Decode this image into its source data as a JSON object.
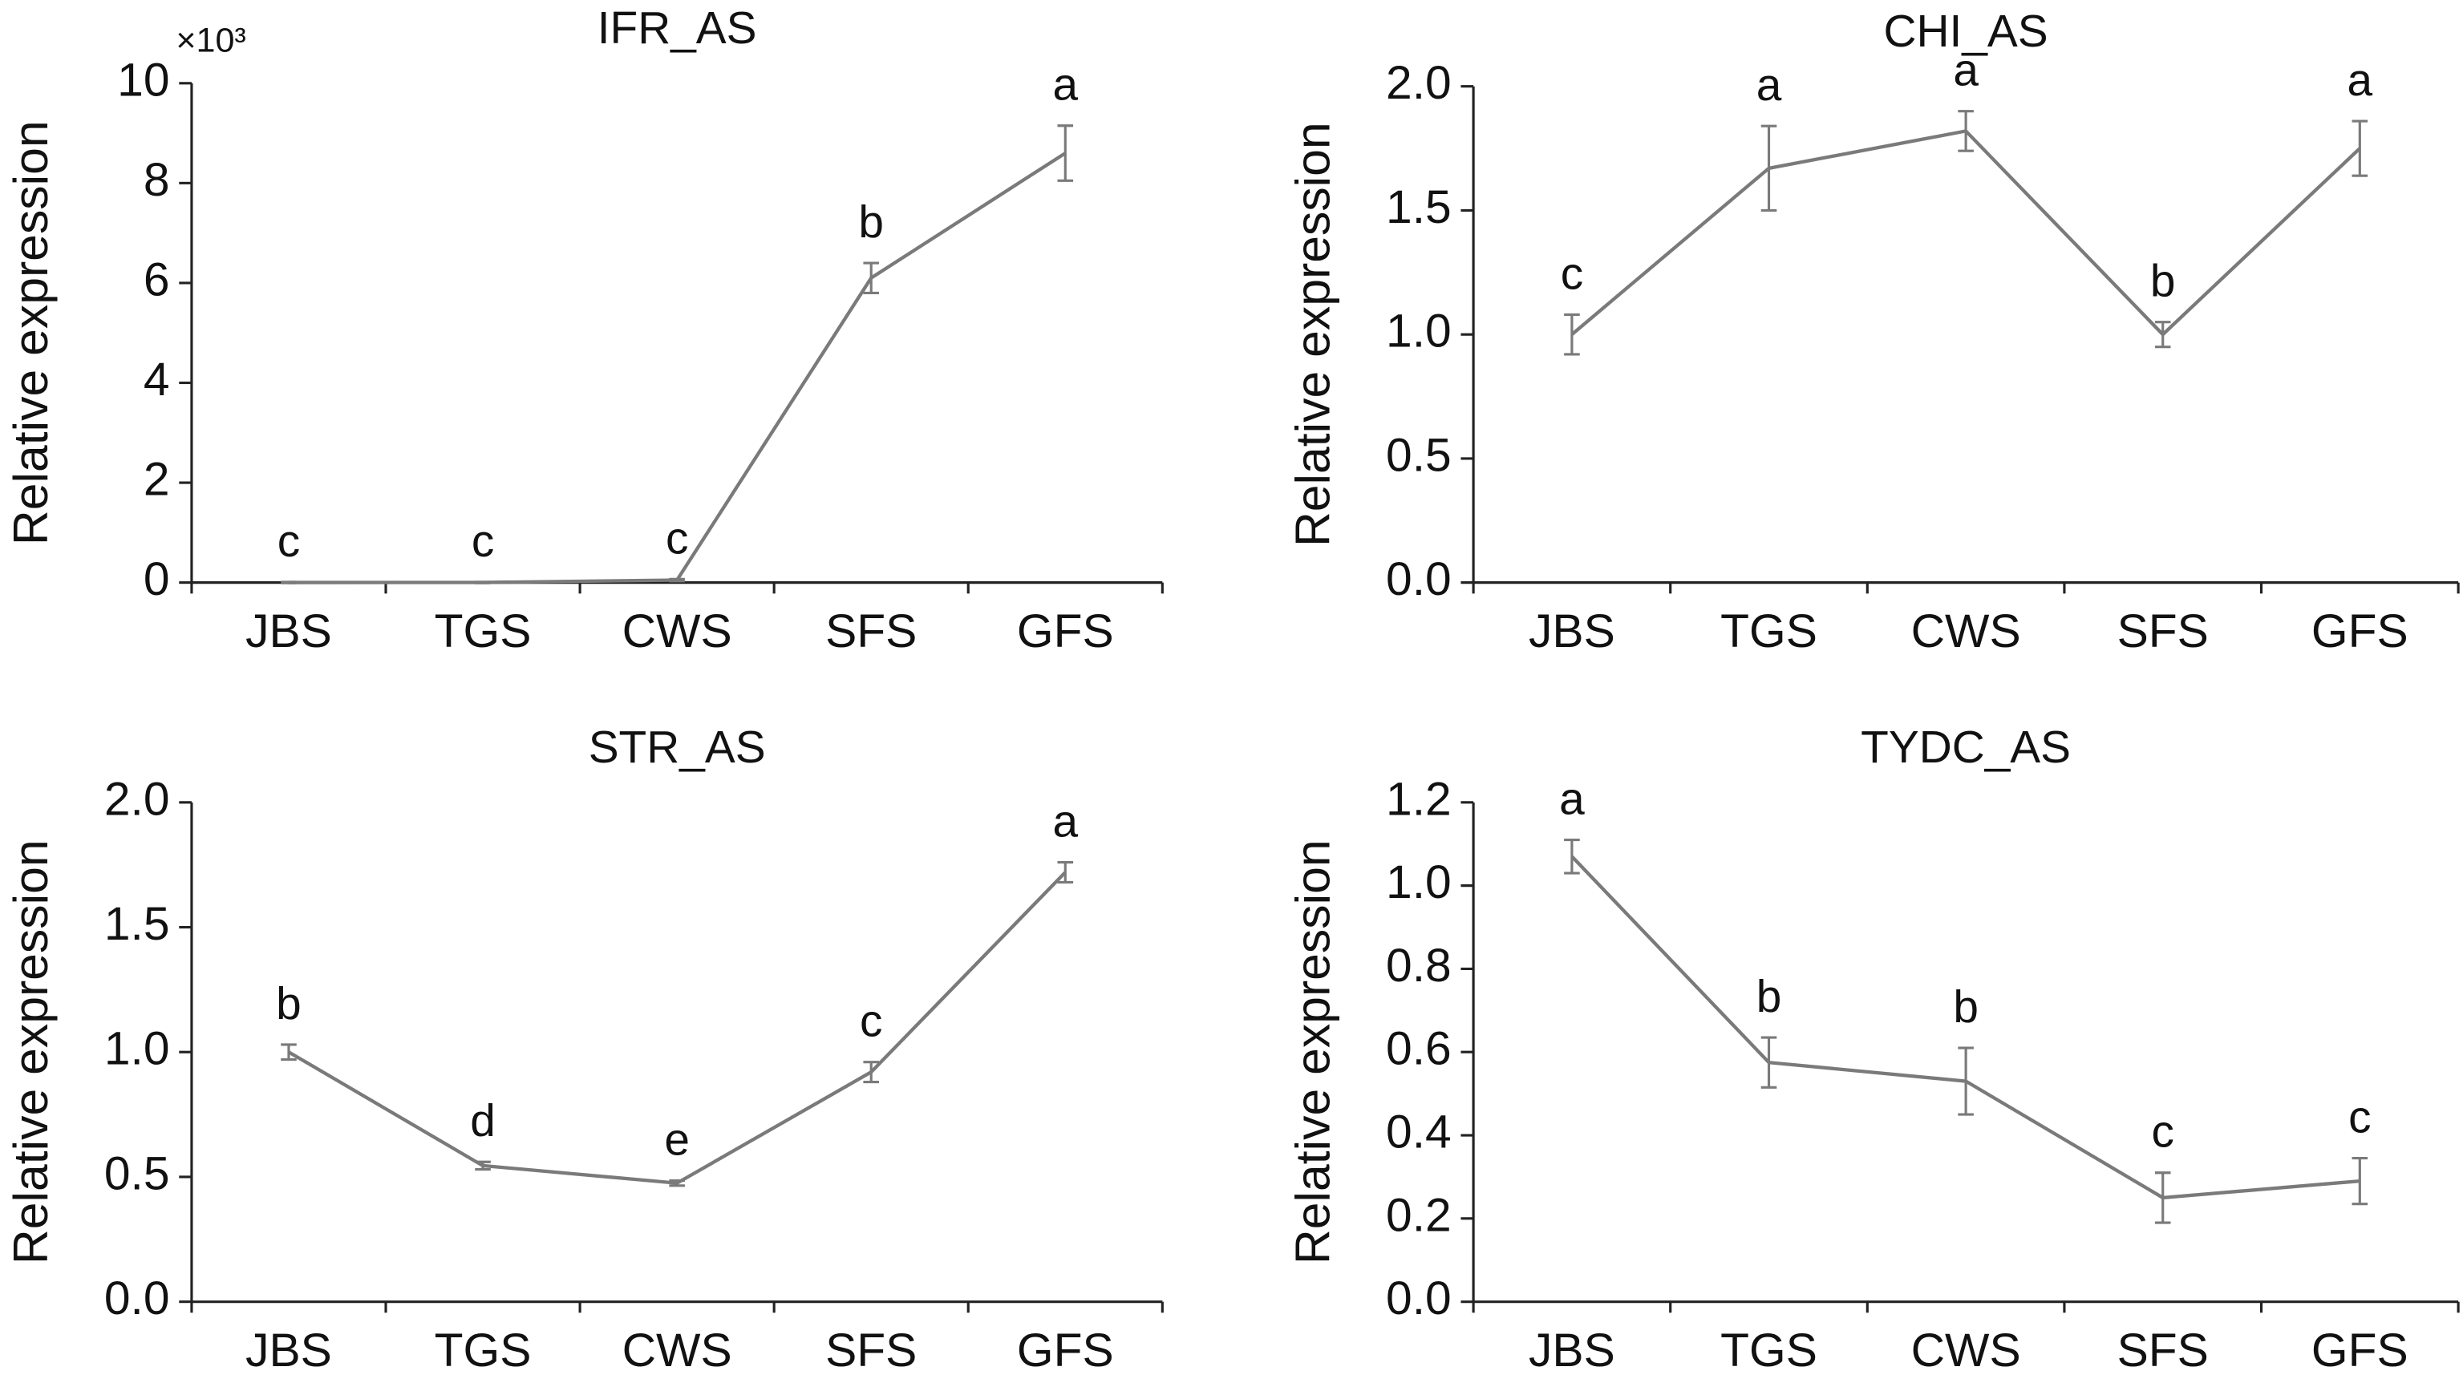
{
  "chart_data": [
    {
      "type": "line",
      "title": "IFR_AS",
      "y_label": "Relative expression",
      "y_multiplier": "×10³",
      "categories": [
        "JBS",
        "TGS",
        "CWS",
        "SFS",
        "GFS"
      ],
      "color": "#7a7a7a",
      "values": [
        0.001,
        0.002,
        0.05,
        6.1,
        8.6
      ],
      "errors": [
        0.01,
        0.01,
        0.02,
        0.3,
        0.55
      ],
      "letters": [
        "c",
        "c",
        "c",
        "b",
        "a"
      ],
      "ylim": [
        0,
        10
      ],
      "yticks": [
        0,
        2,
        4,
        6,
        8,
        10
      ]
    },
    {
      "type": "line",
      "title": "CHI_AS",
      "y_label": "Relative expression",
      "categories": [
        "JBS",
        "TGS",
        "CWS",
        "SFS",
        "GFS"
      ],
      "color": "#7a7a7a",
      "values": [
        1.0,
        1.67,
        1.82,
        1.0,
        1.75
      ],
      "errors": [
        0.08,
        0.17,
        0.08,
        0.05,
        0.11
      ],
      "letters": [
        "c",
        "a",
        "a",
        "b",
        "a"
      ],
      "ylim": [
        0,
        2
      ],
      "yticks": [
        {
          "value": 0,
          "label": "0.0"
        },
        0.5,
        {
          "value": 1,
          "label": "1.0"
        },
        1.5,
        {
          "value": 2,
          "label": "2.0"
        }
      ]
    },
    {
      "type": "line",
      "title": "STR_AS",
      "y_label": "Relative expression",
      "categories": [
        "JBS",
        "TGS",
        "CWS",
        "SFS",
        "GFS"
      ],
      "color": "#7a7a7a",
      "values": [
        1.0,
        0.545,
        0.475,
        0.92,
        1.72
      ],
      "errors": [
        0.03,
        0.015,
        0.01,
        0.04,
        0.04
      ],
      "letters": [
        "b",
        "d",
        "e",
        "c",
        "a"
      ],
      "ylim": [
        0,
        2
      ],
      "yticks": [
        {
          "value": 0,
          "label": "0.0"
        },
        0.5,
        {
          "value": 1,
          "label": "1.0"
        },
        1.5,
        {
          "value": 2,
          "label": "2.0"
        }
      ]
    },
    {
      "type": "line",
      "title": "TYDC_AS",
      "y_label": "Relative expression",
      "categories": [
        "JBS",
        "TGS",
        "CWS",
        "SFS",
        "GFS"
      ],
      "color": "#7a7a7a",
      "values": [
        1.07,
        0.575,
        0.53,
        0.25,
        0.29
      ],
      "errors": [
        0.04,
        0.06,
        0.08,
        0.06,
        0.055
      ],
      "letters": [
        "a",
        "b",
        "b",
        "c",
        "c"
      ],
      "ylim": [
        0,
        1.2
      ],
      "yticks": [
        {
          "value": 0,
          "label": "0.0"
        },
        0.2,
        0.4,
        0.6,
        0.8,
        {
          "value": 1,
          "label": "1.0"
        },
        1.2
      ]
    }
  ]
}
